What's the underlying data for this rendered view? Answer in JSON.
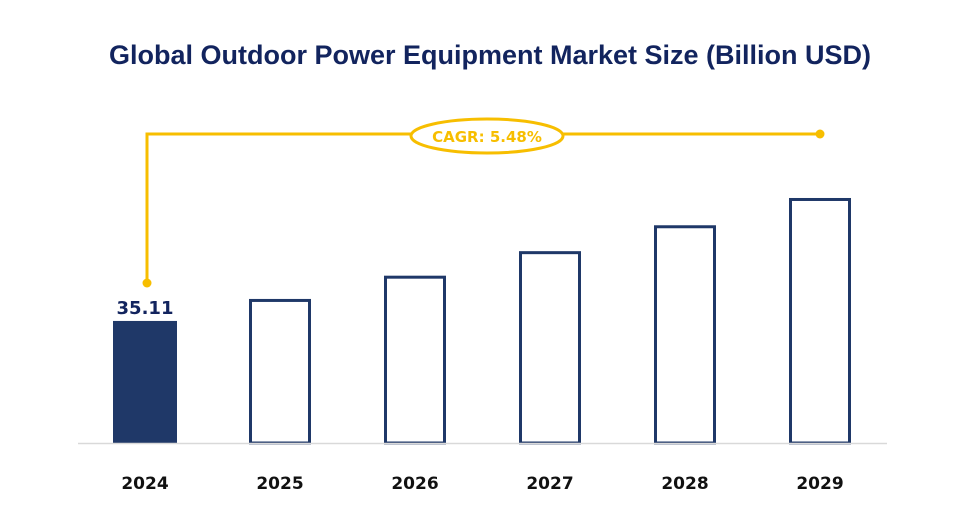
{
  "chart_data": {
    "type": "bar",
    "title": "Global Outdoor Power Equipment Market Size (Billion USD)",
    "xlabel": "",
    "ylabel": "",
    "categories": [
      "2024",
      "2025",
      "2026",
      "2027",
      "2028",
      "2029"
    ],
    "values": [
      35.11,
      37.03,
      39.06,
      41.2,
      43.46,
      45.84
    ],
    "data_labels": [
      "35.11",
      null,
      null,
      null,
      null,
      null
    ],
    "ylim": [
      24.46,
      50
    ],
    "grid": false,
    "annotation": "CAGR: 5.48%",
    "colors": {
      "filled_bar": "#1f3868",
      "outline_bar": "#1f3868",
      "annotation": "#f7be00",
      "title": "#12245e",
      "axis": "#d9d9d9"
    }
  }
}
